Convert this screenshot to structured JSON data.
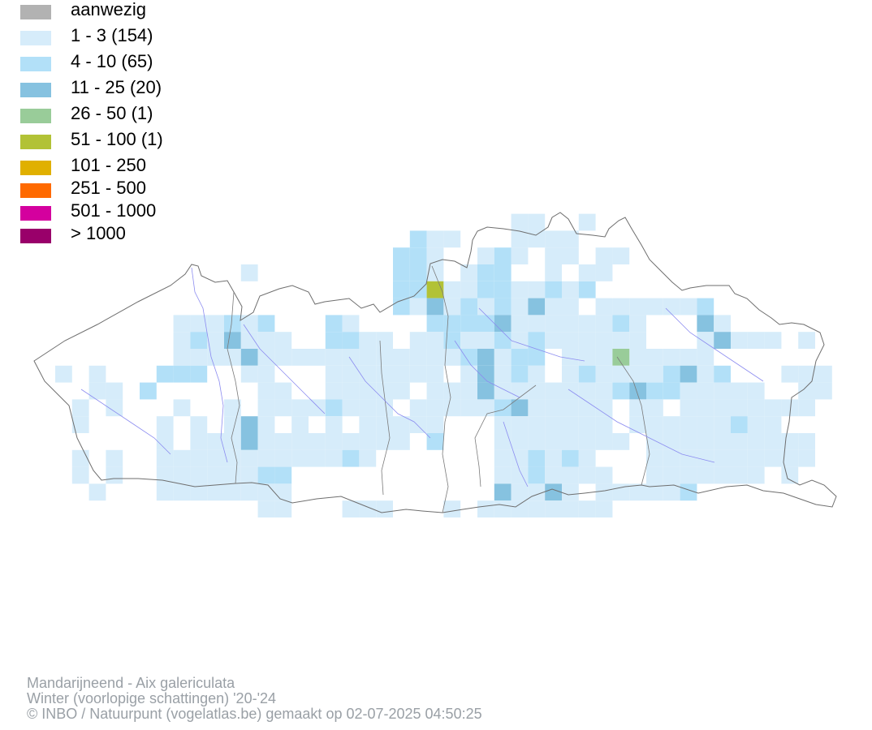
{
  "legend": {
    "items": [
      {
        "label": "aanwezig",
        "color": "#b2b2b2"
      },
      {
        "label": "1 - 3 (154)",
        "color": "#d6ecfa"
      },
      {
        "label": "4 - 10 (65)",
        "color": "#b2e0f8"
      },
      {
        "label": "11 - 25 (20)",
        "color": "#86c2e0"
      },
      {
        "label": "26 - 50 (1)",
        "color": "#99cc99"
      },
      {
        "label": "51 - 100 (1)",
        "color": "#b2c236"
      },
      {
        "label": "101 - 250",
        "color": "#e0b000"
      },
      {
        "label": "251 - 500",
        "color": "#ff6a00"
      },
      {
        "label": "501 - 1000",
        "color": "#d4009e"
      },
      {
        "label": "> 1000",
        "color": "#99006a"
      }
    ]
  },
  "map": {
    "outline_color": "#6e6e6e",
    "river_color": "#8c8cf0"
  },
  "credits": {
    "species": "Mandarijneend - Aix galericulata",
    "period": "Winter (voorlopige schattingen) '20-'24",
    "copyright": "© INBO / Natuurpunt (vogelatlas.be) gemaakt op 02-07-2025 04:50:25"
  }
}
